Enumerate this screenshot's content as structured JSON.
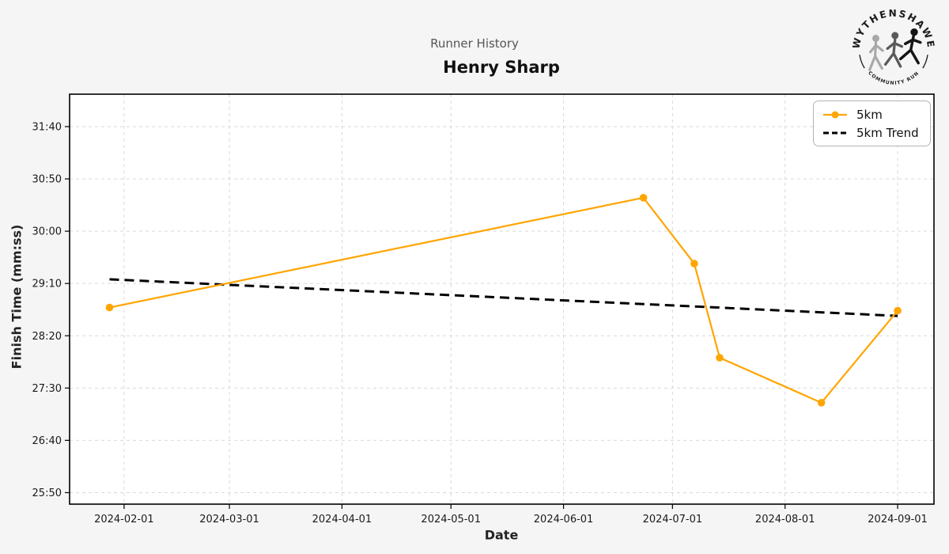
{
  "logo": {
    "top_text": "WYTHENSHAWE",
    "bottom_text": "COMMUNITY RUN"
  },
  "style_colors": {
    "figure_bg": "#f5f5f5",
    "plot_bg": "#ffffff",
    "grid": "#d9d9d9",
    "spine": "#000000",
    "tick_label": "#1a1a1a",
    "title_muted": "#555555",
    "series_5km": "#FFA500",
    "series_trend": "#000000"
  },
  "chart_data": {
    "type": "line",
    "title": "Runner History",
    "subtitle": "Henry Sharp",
    "xlabel": "Date",
    "ylabel": "Finish Time (mm:ss)",
    "grid": true,
    "legend_position": "top-right",
    "x_ticks": [
      "2024-02-01",
      "2024-03-01",
      "2024-04-01",
      "2024-05-01",
      "2024-06-01",
      "2024-07-01",
      "2024-08-01",
      "2024-09-01"
    ],
    "y_ticks": [
      "31:40",
      "30:50",
      "30:00",
      "29:10",
      "28:20",
      "27:30",
      "26:40",
      "25:50"
    ],
    "xlim": [
      "2024-01-17",
      "2024-09-11"
    ],
    "ylim": [
      "25:39",
      "32:11"
    ],
    "series": [
      {
        "name": "5km",
        "color": "#FFA500",
        "line_style": "solid",
        "marker": "circle",
        "points": [
          {
            "date": "2024-01-28",
            "time": "28:47"
          },
          {
            "date": "2024-06-23",
            "time": "30:32"
          },
          {
            "date": "2024-07-07",
            "time": "29:29"
          },
          {
            "date": "2024-07-14",
            "time": "27:59"
          },
          {
            "date": "2024-08-11",
            "time": "27:16"
          },
          {
            "date": "2024-09-01",
            "time": "28:44"
          }
        ]
      },
      {
        "name": "5km Trend",
        "color": "#000000",
        "line_style": "dashed",
        "marker": "none",
        "points": [
          {
            "date": "2024-01-28",
            "time": "29:14"
          },
          {
            "date": "2024-09-01",
            "time": "28:39"
          }
        ]
      }
    ]
  }
}
